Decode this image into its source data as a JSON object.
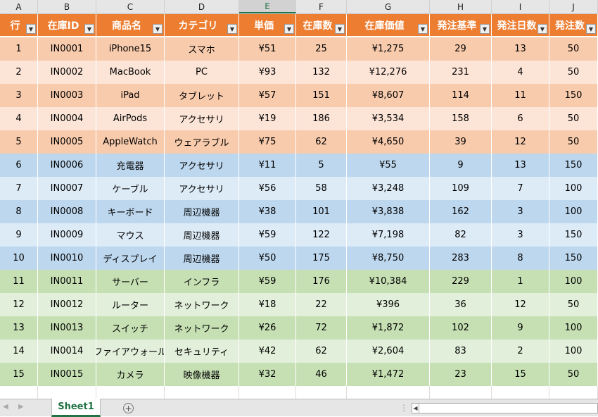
{
  "columns": [
    "A",
    "B",
    "C",
    "D",
    "E",
    "F",
    "G",
    "H",
    "I",
    "J"
  ],
  "selected_column": "E",
  "headers": [
    "行",
    "在庫ID",
    "商品名",
    "カテゴリ",
    "単価",
    "在庫数",
    "在庫価値",
    "発注基準",
    "発注日数",
    "発注数"
  ],
  "rows": [
    [
      "1",
      "IN0001",
      "iPhone15",
      "スマホ",
      "¥51",
      "25",
      "¥1,275",
      "29",
      "13",
      "50"
    ],
    [
      "2",
      "IN0002",
      "MacBook",
      "PC",
      "¥93",
      "132",
      "¥12,276",
      "231",
      "4",
      "50"
    ],
    [
      "3",
      "IN0003",
      "iPad",
      "タブレット",
      "¥57",
      "151",
      "¥8,607",
      "114",
      "11",
      "150"
    ],
    [
      "4",
      "IN0004",
      "AirPods",
      "アクセサリ",
      "¥19",
      "186",
      "¥3,534",
      "158",
      "6",
      "50"
    ],
    [
      "5",
      "IN0005",
      "AppleWatch",
      "ウェアラブル",
      "¥75",
      "62",
      "¥4,650",
      "39",
      "12",
      "50"
    ],
    [
      "6",
      "IN0006",
      "充電器",
      "アクセサリ",
      "¥11",
      "5",
      "¥55",
      "9",
      "13",
      "150"
    ],
    [
      "7",
      "IN0007",
      "ケーブル",
      "アクセサリ",
      "¥56",
      "58",
      "¥3,248",
      "109",
      "7",
      "100"
    ],
    [
      "8",
      "IN0008",
      "キーボード",
      "周辺機器",
      "¥38",
      "101",
      "¥3,838",
      "162",
      "3",
      "100"
    ],
    [
      "9",
      "IN0009",
      "マウス",
      "周辺機器",
      "¥59",
      "122",
      "¥7,198",
      "82",
      "3",
      "150"
    ],
    [
      "10",
      "IN0010",
      "ディスプレイ",
      "周辺機器",
      "¥50",
      "175",
      "¥8,750",
      "283",
      "8",
      "150"
    ],
    [
      "11",
      "IN0011",
      "サーバー",
      "インフラ",
      "¥59",
      "176",
      "¥10,384",
      "229",
      "1",
      "100"
    ],
    [
      "12",
      "IN0012",
      "ルーター",
      "ネットワーク",
      "¥18",
      "22",
      "¥396",
      "36",
      "12",
      "50"
    ],
    [
      "13",
      "IN0013",
      "スイッチ",
      "ネットワーク",
      "¥26",
      "72",
      "¥1,872",
      "102",
      "9",
      "100"
    ],
    [
      "14",
      "IN0014",
      "ファイアウォール",
      "セキュリティ",
      "¥42",
      "62",
      "¥2,604",
      "83",
      "2",
      "100"
    ],
    [
      "15",
      "IN0015",
      "カメラ",
      "映像機器",
      "¥32",
      "46",
      "¥1,472",
      "23",
      "15",
      "50"
    ]
  ],
  "row_colors": [
    "#F8CBAD",
    "#FCE4D6",
    "#F8CBAD",
    "#FCE4D6",
    "#F8CBAD",
    "#BDD7EE",
    "#DDEBF7",
    "#BDD7EE",
    "#DDEBF7",
    "#BDD7EE",
    "#C6E0B4",
    "#E2EFDA",
    "#C6E0B4",
    "#E2EFDA",
    "#C6E0B4"
  ],
  "header_color": "#ED7D31",
  "sheet_tab": "Sheet1",
  "add_sheet_icon": "plus-circle-icon"
}
